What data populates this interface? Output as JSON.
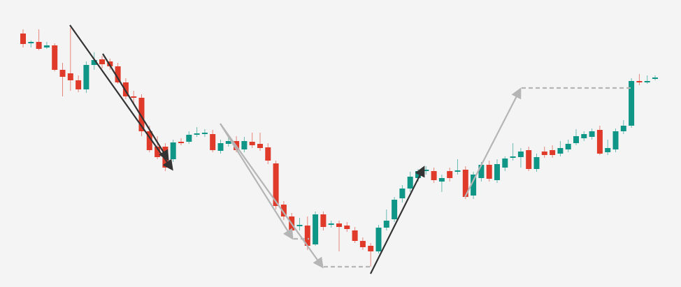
{
  "chart_data": {
    "type": "candlestick",
    "ylim": [
      0,
      411
    ],
    "up_color": "#0f9687",
    "down_color": "#e03a2a",
    "open": [
      363,
      349,
      351,
      343,
      346,
      311,
      306,
      296,
      283,
      318,
      326,
      323,
      316,
      293,
      273,
      271,
      223,
      201,
      201,
      183,
      208,
      208,
      219,
      219,
      219,
      195,
      205,
      209,
      197,
      208,
      205,
      200,
      177,
      118,
      101,
      87,
      88,
      61,
      104,
      89,
      91,
      88,
      81,
      66,
      59,
      51,
      85,
      97,
      127,
      141,
      156,
      166,
      166,
      151,
      166,
      165,
      168,
      131,
      156,
      175,
      153,
      171,
      185,
      186,
      196,
      169,
      194,
      196,
      191,
      197,
      206,
      213,
      215,
      225,
      193,
      197,
      223,
      231,
      295,
      293,
      298
    ],
    "high": [
      369,
      353,
      369,
      351,
      349,
      321,
      371,
      303,
      323,
      336,
      331,
      327,
      321,
      299,
      281,
      276,
      231,
      216,
      206,
      211,
      213,
      223,
      229,
      226,
      225,
      211,
      218,
      216,
      215,
      221,
      221,
      206,
      181,
      123,
      106,
      99,
      101,
      108,
      108,
      95,
      95,
      93,
      86,
      71,
      63,
      89,
      111,
      129,
      146,
      165,
      169,
      173,
      171,
      161,
      171,
      183,
      173,
      165,
      179,
      181,
      183,
      187,
      206,
      199,
      201,
      191,
      201,
      203,
      209,
      211,
      226,
      223,
      227,
      231,
      211,
      227,
      239,
      299,
      305,
      303,
      303
    ],
    "low": [
      343,
      343,
      339,
      341,
      309,
      273,
      281,
      279,
      278,
      311,
      313,
      311,
      291,
      269,
      261,
      216,
      193,
      183,
      166,
      179,
      203,
      205,
      215,
      215,
      193,
      191,
      201,
      193,
      193,
      199,
      195,
      176,
      111,
      96,
      71,
      81,
      53,
      59,
      81,
      85,
      51,
      79,
      63,
      53,
      29,
      48,
      81,
      93,
      121,
      136,
      151,
      161,
      149,
      136,
      151,
      161,
      126,
      126,
      151,
      151,
      149,
      166,
      181,
      171,
      166,
      165,
      185,
      185,
      187,
      193,
      203,
      209,
      211,
      189,
      189,
      193,
      219,
      228,
      289,
      291,
      296
    ],
    "close": [
      348,
      351,
      341,
      346,
      311,
      301,
      296,
      283,
      318,
      325,
      319,
      316,
      293,
      273,
      271,
      223,
      196,
      186,
      171,
      207,
      206,
      218,
      220,
      221,
      196,
      206,
      209,
      196,
      209,
      203,
      199,
      181,
      116,
      101,
      81,
      89,
      59,
      104,
      86,
      91,
      86,
      83,
      66,
      57,
      51,
      85,
      95,
      125,
      141,
      158,
      166,
      168,
      153,
      156,
      156,
      167,
      129,
      161,
      175,
      155,
      176,
      184,
      187,
      194,
      169,
      186,
      189,
      189,
      199,
      205,
      216,
      219,
      223,
      191,
      199,
      223,
      231,
      295,
      293,
      295,
      300
    ]
  }
}
